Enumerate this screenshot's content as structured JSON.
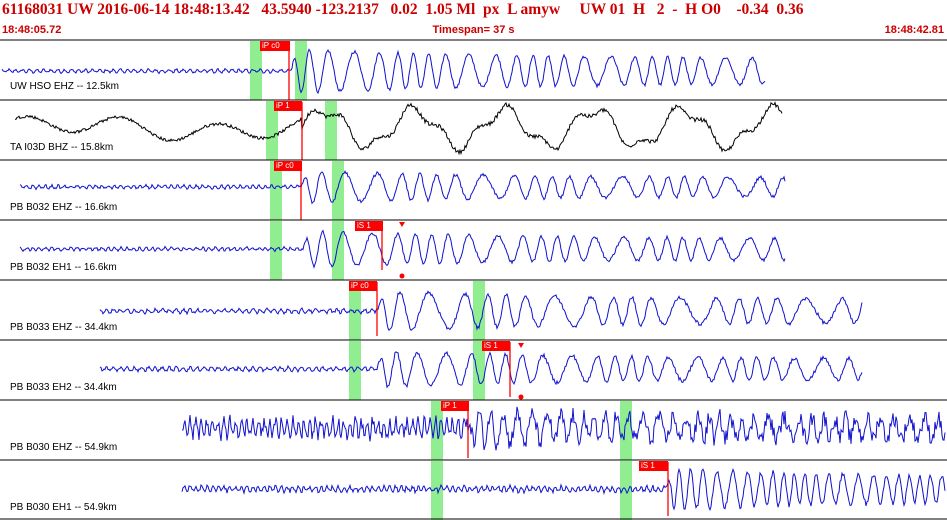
{
  "header": {
    "line1": "61168031 UW 2016-06-14 18:48:13.42   43.5940 -123.2137   0.02  1.05 Ml  px  L amyw     UW 01  H   2  -  H O0    -0.34  0.36",
    "start_time": "18:48:05.72",
    "timespan": "Timespan=  37 s",
    "end_time": "18:48:42.81"
  },
  "colors": {
    "trace_blue": "#1010d0",
    "trace_black": "#000000",
    "pick_red": "#ff0000",
    "window_green": "#90ee90",
    "divider": "#000000",
    "header_red": "#cc0000"
  },
  "channels": [
    {
      "label": "UW HSO EHZ -- 12.5km",
      "color": "blue",
      "picks": [
        {
          "text": "iP c0"
        }
      ]
    },
    {
      "label": "TA I03D BHZ -- 15.8km",
      "color": "black",
      "picks": [
        {
          "text": "iP 1"
        }
      ]
    },
    {
      "label": "PB B032 EHZ -- 16.6km",
      "color": "blue",
      "picks": [
        {
          "text": "iP c0"
        }
      ]
    },
    {
      "label": "PB B032 EH1 -- 16.6km",
      "color": "blue",
      "picks": [
        {
          "text": "iS 1"
        }
      ]
    },
    {
      "label": "PB B033 EHZ -- 34.4km",
      "color": "blue",
      "picks": [
        {
          "text": "iP c0"
        }
      ]
    },
    {
      "label": "PB B033 EH2 -- 34.4km",
      "color": "blue",
      "picks": [
        {
          "text": "iS 1"
        }
      ]
    },
    {
      "label": "PB B030 EHZ -- 54.9km",
      "color": "blue",
      "picks": [
        {
          "text": "iP 1"
        }
      ]
    },
    {
      "label": "PB B030 EH1 -- 54.9km",
      "color": "blue",
      "picks": [
        {
          "text": "iS 1"
        }
      ]
    }
  ]
}
